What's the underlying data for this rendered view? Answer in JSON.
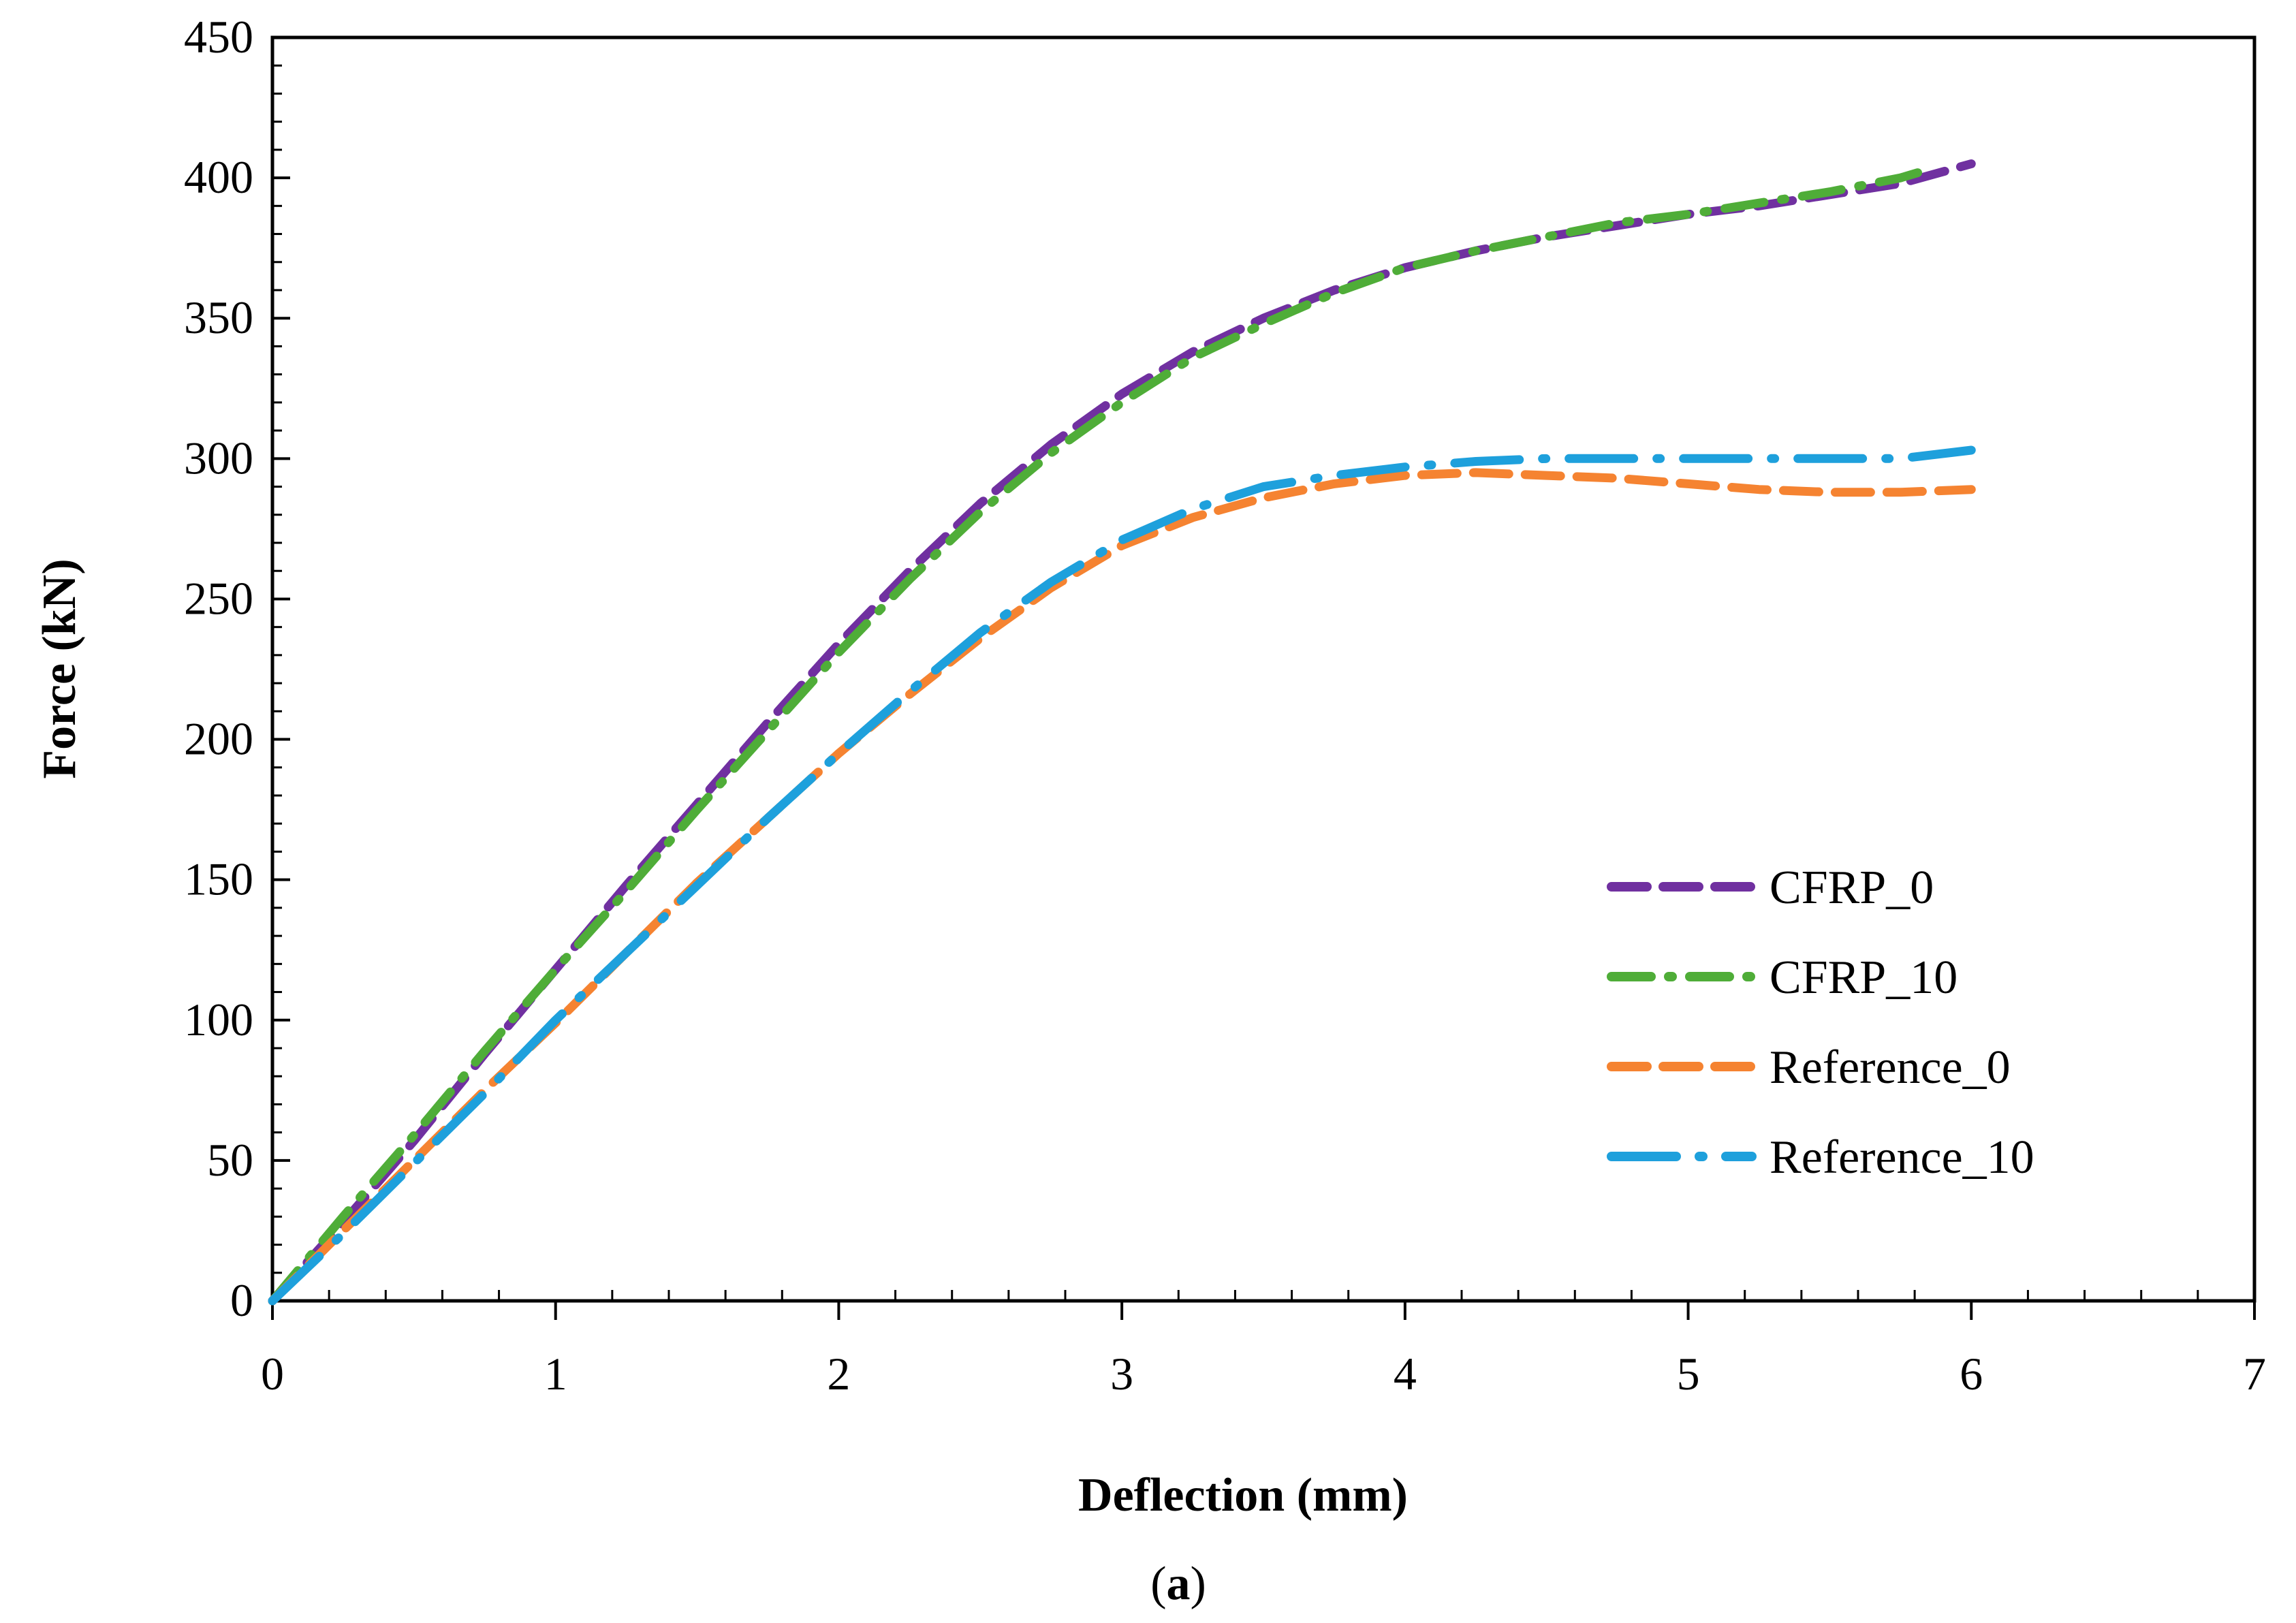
{
  "chart_data": {
    "type": "line",
    "title": "",
    "xlabel": "Deflection (mm)",
    "ylabel": "Force (kN)",
    "xlim": [
      0,
      7
    ],
    "ylim": [
      0,
      450
    ],
    "xticks": [
      0,
      1,
      2,
      3,
      4,
      5,
      6,
      7
    ],
    "yticks": [
      0,
      50,
      100,
      150,
      200,
      250,
      300,
      350,
      400,
      450
    ],
    "grid": false,
    "legend_position": "right-center",
    "caption": {
      "open": "(",
      "letter": "a",
      "close": ")"
    },
    "series": [
      {
        "name": "CFRP_0",
        "color": "#7030a0",
        "style": "dash",
        "x": [
          0,
          0.25,
          0.5,
          0.75,
          1.0,
          1.25,
          1.5,
          1.75,
          2.0,
          2.25,
          2.5,
          2.75,
          3.0,
          3.25,
          3.5,
          3.75,
          4.0,
          4.25,
          4.5,
          4.75,
          5.0,
          5.25,
          5.5,
          5.75,
          6.0
        ],
        "y": [
          0,
          28,
          57,
          88,
          118,
          148,
          177,
          206,
          234,
          260,
          284,
          305,
          323,
          338,
          350,
          360,
          368,
          374,
          379,
          383,
          387,
          390,
          394,
          398,
          405
        ]
      },
      {
        "name": "CFRP_10",
        "color": "#4fad38",
        "style": "dash-dot",
        "x": [
          0,
          0.25,
          0.5,
          0.75,
          1.0,
          1.25,
          1.5,
          1.75,
          2.0,
          2.25,
          2.5,
          2.75,
          3.0,
          3.25,
          3.5,
          3.75,
          4.0,
          4.25,
          4.5,
          4.75,
          5.0,
          5.25,
          5.5,
          5.75,
          5.85
        ],
        "y": [
          0,
          30,
          59,
          89,
          118,
          146,
          175,
          203,
          231,
          257,
          281,
          302,
          320,
          336,
          348,
          359,
          368,
          374,
          379,
          384,
          387,
          391,
          395,
          400,
          403
        ]
      },
      {
        "name": "Reference_0",
        "color": "#f58331",
        "style": "dash",
        "x": [
          0,
          0.25,
          0.5,
          0.75,
          1.0,
          1.25,
          1.5,
          1.75,
          2.0,
          2.25,
          2.5,
          2.75,
          3.0,
          3.25,
          3.5,
          3.75,
          4.0,
          4.25,
          4.5,
          4.75,
          5.0,
          5.25,
          5.5,
          5.75,
          6.0
        ],
        "y": [
          0,
          25,
          50,
          75,
          99,
          124,
          149,
          172,
          195,
          216,
          236,
          254,
          269,
          279,
          286,
          291,
          294,
          295,
          294,
          293,
          291,
          289,
          288,
          288,
          289
        ]
      },
      {
        "name": "Reference_10",
        "color": "#1ea0dc",
        "style": "long-dash-dot",
        "x": [
          0,
          0.25,
          0.5,
          0.75,
          1.0,
          1.25,
          1.5,
          1.75,
          2.0,
          2.25,
          2.5,
          2.75,
          3.0,
          3.25,
          3.5,
          3.75,
          4.0,
          4.25,
          4.5,
          4.75,
          5.0,
          5.25,
          5.5,
          5.75,
          6.0
        ],
        "y": [
          0,
          24,
          49,
          74,
          100,
          124,
          148,
          172,
          195,
          217,
          238,
          256,
          271,
          282,
          290,
          294,
          297,
          299,
          300,
          300,
          300,
          300,
          300,
          300,
          303
        ]
      }
    ]
  }
}
